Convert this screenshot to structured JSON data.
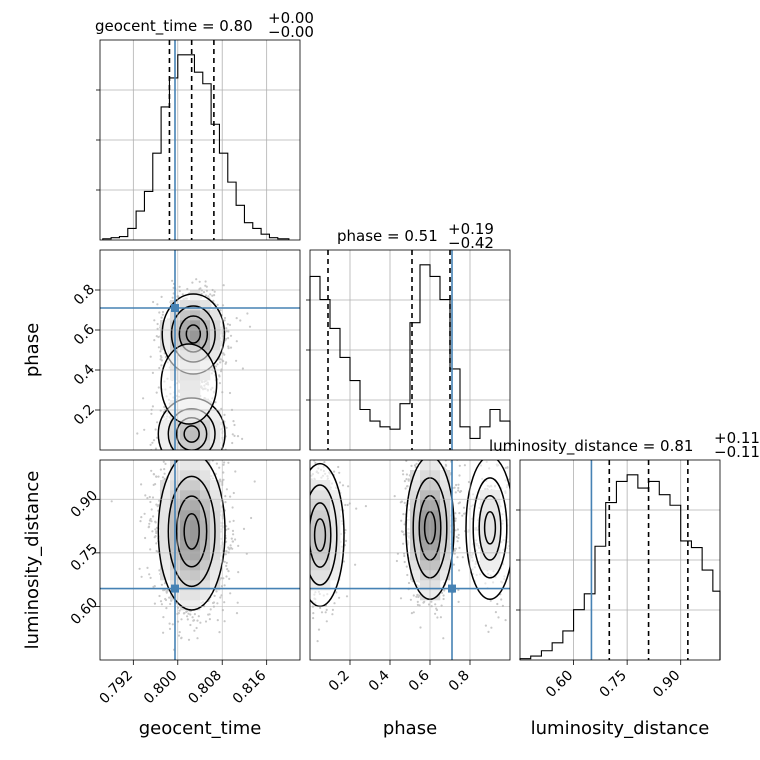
{
  "chart_data": {
    "type": "corner",
    "parameters": [
      "geocent_time",
      "phase",
      "luminosity_distance"
    ],
    "truths": [
      0.7995,
      0.71,
      0.65
    ],
    "titles": [
      {
        "text": "geocent_time = 0.80",
        "plus": "+0.00",
        "minus": "−0.00"
      },
      {
        "text": "phase = 0.51",
        "plus": "+0.19",
        "minus": "−0.42"
      },
      {
        "text": "luminosity_distance = 0.81",
        "plus": "+0.11",
        "minus": "−0.11"
      }
    ],
    "quantiles": [
      [
        0.7985,
        0.8025,
        0.8065
      ],
      [
        0.09,
        0.51,
        0.7
      ],
      [
        0.7,
        0.81,
        0.92
      ]
    ],
    "ranges": [
      [
        0.786,
        0.822
      ],
      [
        0.0,
        1.0
      ],
      [
        0.45,
        1.01
      ]
    ],
    "ticks": [
      {
        "values": [
          0.792,
          0.8,
          0.808,
          0.816
        ],
        "labels": [
          "0.792",
          "0.800",
          "0.808",
          "0.816"
        ]
      },
      {
        "values": [
          0.2,
          0.4,
          0.6,
          0.8
        ],
        "labels": [
          "0.2",
          "0.4",
          "0.6",
          "0.8"
        ]
      },
      {
        "values": [
          0.6,
          0.75,
          0.9
        ],
        "labels": [
          "0.60",
          "0.75",
          "0.90"
        ]
      }
    ],
    "histograms": [
      {
        "bin_edges": [
          0.7865,
          0.788,
          0.7895,
          0.791,
          0.7925,
          0.794,
          0.7955,
          0.797,
          0.7985,
          0.8,
          0.8015,
          0.803,
          0.8045,
          0.806,
          0.8075,
          0.809,
          0.8105,
          0.812,
          0.8135,
          0.815,
          0.8165,
          0.818,
          0.82
        ],
        "counts": [
          1,
          2,
          3,
          10,
          25,
          42,
          75,
          115,
          140,
          160,
          160,
          145,
          135,
          100,
          75,
          50,
          30,
          15,
          10,
          5,
          2,
          1
        ]
      },
      {
        "bin_edges": [
          0.0,
          0.05,
          0.1,
          0.15,
          0.2,
          0.25,
          0.3,
          0.35,
          0.4,
          0.45,
          0.5,
          0.55,
          0.6,
          0.65,
          0.7,
          0.75,
          0.8,
          0.85,
          0.9,
          0.95,
          1.0
        ],
        "counts": [
          150,
          130,
          105,
          80,
          60,
          35,
          25,
          20,
          18,
          40,
          110,
          160,
          150,
          130,
          70,
          20,
          10,
          20,
          35,
          25
        ]
      },
      {
        "bin_edges": [
          0.45,
          0.48,
          0.51,
          0.54,
          0.57,
          0.6,
          0.63,
          0.66,
          0.69,
          0.72,
          0.75,
          0.78,
          0.81,
          0.84,
          0.87,
          0.9,
          0.93,
          0.96,
          0.99,
          1.01
        ],
        "counts": [
          1,
          3,
          7,
          13,
          22,
          38,
          50,
          86,
          119,
          135,
          140,
          130,
          135,
          125,
          117,
          90,
          85,
          68,
          52
        ]
      }
    ],
    "contour_regions": [
      {
        "x": 1,
        "y": 0,
        "label": "phase vs geocent_time",
        "points": [
          [
            0.8025,
            0.59
          ],
          [
            0.8025,
            0.05
          ]
        ]
      },
      {
        "x": 2,
        "y": 0,
        "label": "luminosity_distance vs geocent_time",
        "points": [
          [
            0.8025,
            0.81
          ],
          [
            0.8025,
            0.76
          ]
        ]
      },
      {
        "x": 2,
        "y": 1,
        "label": "luminosity_distance vs phase",
        "points": [
          [
            0.03,
            0.77
          ],
          [
            0.58,
            0.85
          ]
        ]
      }
    ]
  }
}
